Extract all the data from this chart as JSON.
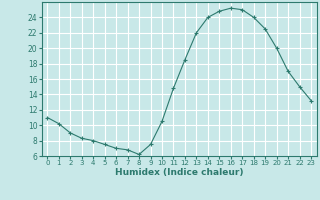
{
  "x": [
    0,
    1,
    2,
    3,
    4,
    5,
    6,
    7,
    8,
    9,
    10,
    11,
    12,
    13,
    14,
    15,
    16,
    17,
    18,
    19,
    20,
    21,
    22,
    23
  ],
  "y": [
    11.0,
    10.2,
    9.0,
    8.3,
    8.0,
    7.5,
    7.0,
    6.8,
    6.2,
    7.5,
    10.5,
    14.8,
    18.5,
    22.0,
    24.0,
    24.8,
    25.2,
    25.0,
    24.0,
    22.5,
    20.0,
    17.0,
    15.0,
    13.2
  ],
  "xlabel": "Humidex (Indice chaleur)",
  "ylim": [
    6,
    26
  ],
  "xlim": [
    -0.5,
    23.5
  ],
  "yticks": [
    6,
    8,
    10,
    12,
    14,
    16,
    18,
    20,
    22,
    24
  ],
  "xticks": [
    0,
    1,
    2,
    3,
    4,
    5,
    6,
    7,
    8,
    9,
    10,
    11,
    12,
    13,
    14,
    15,
    16,
    17,
    18,
    19,
    20,
    21,
    22,
    23
  ],
  "line_color": "#2d7a6e",
  "marker": "+",
  "bg_color": "#c8e8e8",
  "grid_color": "#ffffff",
  "spine_color": "#2d7a6e"
}
